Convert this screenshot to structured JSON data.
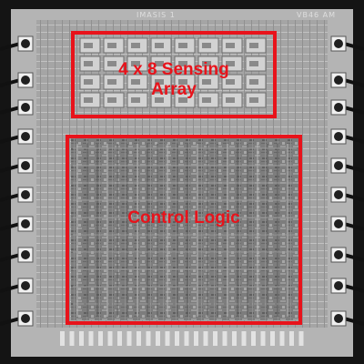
{
  "chip": {
    "top_label_left": "IMASIS 1",
    "top_label_right": "VB46 AM"
  },
  "annotations": {
    "sensing_array_line1": "4 x 8 Sensing",
    "sensing_array_line2": "Array",
    "control_logic": "Control Logic"
  },
  "colors": {
    "highlight": "#e8131b",
    "die_background": "#b4b4b4",
    "bond_wire": "#111111"
  }
}
